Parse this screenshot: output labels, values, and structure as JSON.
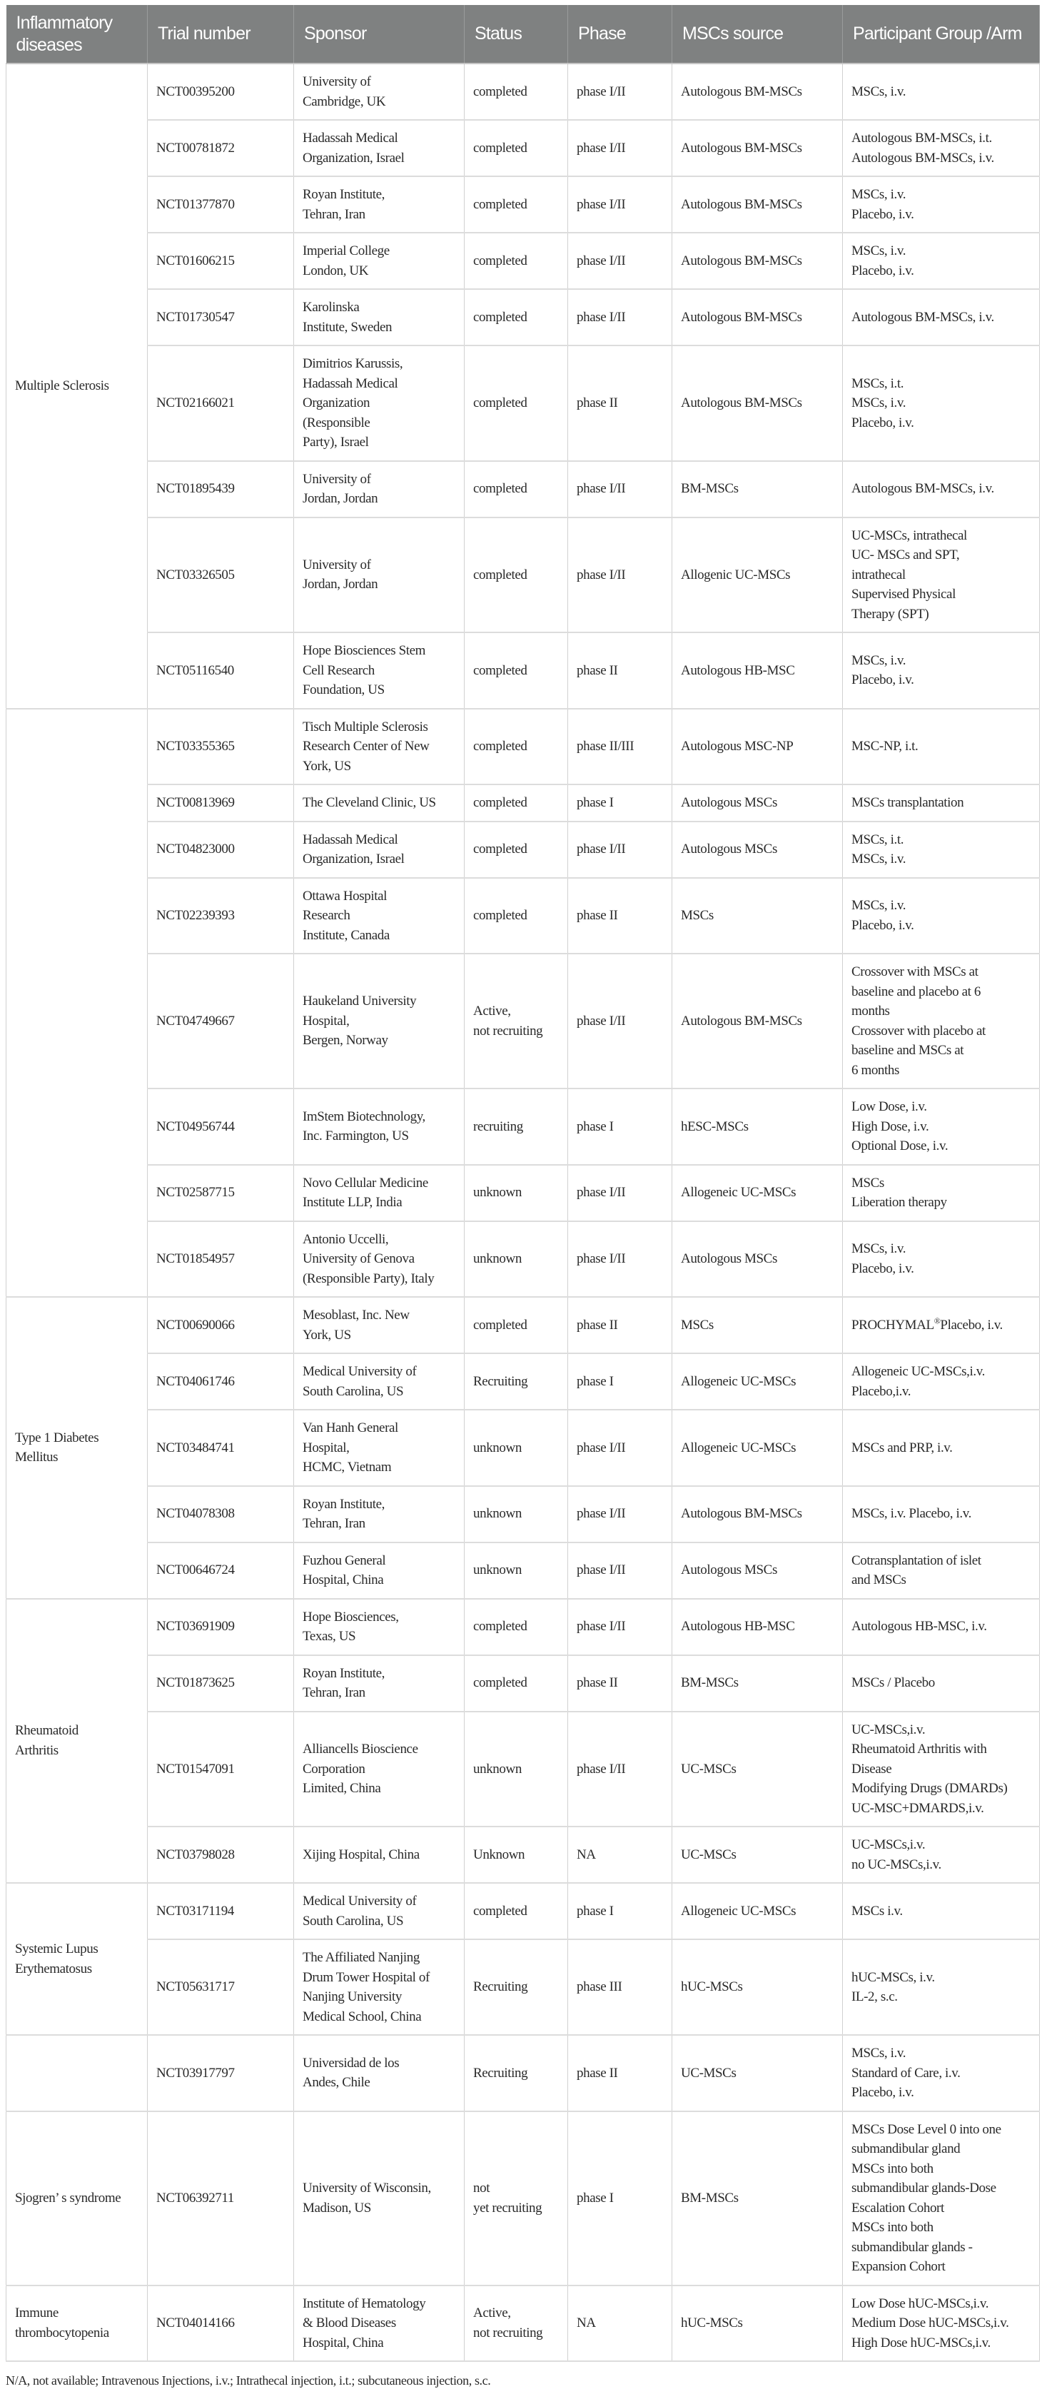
{
  "header": [
    "Inflammatory diseases",
    "Trial number",
    "Sponsor",
    "Status",
    "Phase",
    "MSCs source",
    "Participant Group /Arm"
  ],
  "groups": [
    {
      "disease": "Multiple Sclerosis",
      "rows": [
        {
          "trial": "NCT00395200",
          "sponsor": "University of\nCambridge, UK",
          "status": "completed",
          "phase": "phase I/II",
          "source": "Autologous BM-MSCs",
          "arm": "MSCs, i.v."
        },
        {
          "trial": "NCT00781872",
          "sponsor": "Hadassah Medical\nOrganization, Israel",
          "status": "completed",
          "phase": "phase I/II",
          "source": "Autologous BM-MSCs",
          "arm": "Autologous BM-MSCs, i.t.\nAutologous BM-MSCs, i.v."
        },
        {
          "trial": "NCT01377870",
          "sponsor": "Royan Institute,\nTehran, Iran",
          "status": "completed",
          "phase": "phase I/II",
          "source": "Autologous BM-MSCs",
          "arm": "MSCs, i.v.\nPlacebo, i.v."
        },
        {
          "trial": "NCT01606215",
          "sponsor": "Imperial College\nLondon, UK",
          "status": "completed",
          "phase": "phase I/II",
          "source": "Autologous BM-MSCs",
          "arm": "MSCs, i.v.\nPlacebo, i.v."
        },
        {
          "trial": "NCT01730547",
          "sponsor": "Karolinska\nInstitute, Sweden",
          "status": "completed",
          "phase": "phase I/II",
          "source": "Autologous BM-MSCs",
          "arm": "Autologous BM-MSCs, i.v."
        },
        {
          "trial": "NCT02166021",
          "sponsor": "Dimitrios Karussis,\nHadassah Medical\nOrganization\n(Responsible\nParty), Israel",
          "status": "completed",
          "phase": "phase II",
          "source": "Autologous BM-MSCs",
          "arm": "MSCs, i.t.\nMSCs, i.v.\nPlacebo, i.v."
        },
        {
          "trial": "NCT01895439",
          "sponsor": "University of\nJordan, Jordan",
          "status": "completed",
          "phase": "phase I/II",
          "source": "BM-MSCs",
          "arm": "Autologous BM-MSCs, i.v."
        },
        {
          "trial": "NCT03326505",
          "sponsor": "University of\nJordan, Jordan",
          "status": "completed",
          "phase": "phase I/II",
          "source": "Allogenic UC-MSCs",
          "arm": "UC-MSCs, intrathecal\nUC- MSCs and SPT,\nintrathecal\nSupervised Physical\nTherapy (SPT)"
        },
        {
          "trial": "NCT05116540",
          "sponsor": "Hope Biosciences Stem\nCell Research\nFoundation, US",
          "status": "completed",
          "phase": "phase II",
          "source": "Autologous HB-MSC",
          "arm": "MSCs, i.v.\nPlacebo, i.v."
        }
      ]
    },
    {
      "disease": "",
      "rows": [
        {
          "trial": "NCT03355365",
          "sponsor": "Tisch Multiple Sclerosis\nResearch Center of New\nYork, US",
          "status": "completed",
          "phase": "phase II/III",
          "source": "Autologous MSC-NP",
          "arm": "MSC-NP, i.t."
        },
        {
          "trial": "NCT00813969",
          "sponsor": "The Cleveland Clinic, US",
          "status": "completed",
          "phase": "phase I",
          "source": "Autologous MSCs",
          "arm": "MSCs transplantation"
        },
        {
          "trial": "NCT04823000",
          "sponsor": "Hadassah Medical\nOrganization, Israel",
          "status": "completed",
          "phase": "phase I/II",
          "source": "Autologous MSCs",
          "arm": "MSCs, i.t.\nMSCs, i.v."
        },
        {
          "trial": "NCT02239393",
          "sponsor": "Ottawa Hospital\nResearch\nInstitute, Canada",
          "status": "completed",
          "phase": "phase II",
          "source": "MSCs",
          "arm": "MSCs, i.v.\nPlacebo, i.v."
        },
        {
          "trial": "NCT04749667",
          "sponsor": "Haukeland University\nHospital,\nBergen, Norway",
          "status": "Active,\nnot recruiting",
          "phase": "phase I/II",
          "source": "Autologous BM-MSCs",
          "arm": "Crossover with MSCs at\nbaseline and placebo at 6\nmonths\nCrossover with placebo at\nbaseline and MSCs at\n6 months"
        },
        {
          "trial": "NCT04956744",
          "sponsor": "ImStem Biotechnology,\nInc. Farmington, US",
          "status": "recruiting",
          "phase": "phase I",
          "source": "hESC-MSCs",
          "arm": "Low Dose, i.v.\nHigh Dose, i.v.\nOptional Dose, i.v."
        },
        {
          "trial": "NCT02587715",
          "sponsor": "Novo Cellular Medicine\nInstitute LLP, India",
          "status": "unknown",
          "phase": "phase I/II",
          "source": "Allogeneic UC-MSCs",
          "arm": "MSCs\nLiberation therapy"
        },
        {
          "trial": "NCT01854957",
          "sponsor": "Antonio Uccelli,\nUniversity of Genova\n(Responsible Party), Italy",
          "status": "unknown",
          "phase": "phase I/II",
          "source": "Autologous MSCs",
          "arm": "MSCs, i.v.\nPlacebo, i.v."
        }
      ]
    },
    {
      "disease": "Type 1 Diabetes\nMellitus",
      "rows": [
        {
          "trial": "NCT00690066",
          "sponsor": "Mesoblast, Inc. New\nYork, US",
          "status": "completed",
          "phase": "phase II",
          "source": "MSCs",
          "arm": "PROCHYMAL®Placebo, i.v."
        },
        {
          "trial": "NCT04061746",
          "sponsor": "Medical University of\nSouth Carolina, US",
          "status": "Recruiting",
          "phase": "phase I",
          "source": "Allogeneic UC-MSCs",
          "arm": "Allogeneic UC-MSCs,i.v.\nPlacebo,i.v."
        },
        {
          "trial": "NCT03484741",
          "sponsor": "Van Hanh General\nHospital,\nHCMC, Vietnam",
          "status": "unknown",
          "phase": "phase I/II",
          "source": "Allogeneic UC-MSCs",
          "arm": "MSCs and PRP, i.v."
        },
        {
          "trial": "NCT04078308",
          "sponsor": "Royan Institute,\nTehran, Iran",
          "status": "unknown",
          "phase": "phase I/II",
          "source": "Autologous BM-MSCs",
          "arm": "MSCs, i.v. Placebo, i.v."
        },
        {
          "trial": "NCT00646724",
          "sponsor": "Fuzhou General\nHospital, China",
          "status": "unknown",
          "phase": "phase I/II",
          "source": "Autologous MSCs",
          "arm": "Cotransplantation of islet\nand MSCs"
        }
      ]
    },
    {
      "disease": "Rheumatoid\nArthritis",
      "rows": [
        {
          "trial": "NCT03691909",
          "sponsor": "Hope Biosciences,\nTexas, US",
          "status": "completed",
          "phase": "phase I/II",
          "source": "Autologous HB-MSC",
          "arm": "Autologous HB-MSC, i.v."
        },
        {
          "trial": "NCT01873625",
          "sponsor": "Royan Institute,\nTehran, Iran",
          "status": "completed",
          "phase": "phase II",
          "source": "BM-MSCs",
          "arm": "MSCs / Placebo"
        },
        {
          "trial": "NCT01547091",
          "sponsor": "Alliancells Bioscience\nCorporation\nLimited, China",
          "status": "unknown",
          "phase": "phase I/II",
          "source": "UC-MSCs",
          "arm": "UC-MSCs,i.v.\nRheumatoid Arthritis with\nDisease\nModifying Drugs (DMARDs)\nUC-MSC+DMARDS,i.v."
        },
        {
          "trial": "NCT03798028",
          "sponsor": "Xijing Hospital, China",
          "status": "Unknown",
          "phase": "NA",
          "source": "UC-MSCs",
          "arm": "UC-MSCs,i.v.\nno UC-MSCs,i.v."
        }
      ]
    },
    {
      "disease": "Systemic Lupus\nErythematosus",
      "rows": [
        {
          "trial": "NCT03171194",
          "sponsor": "Medical University of\nSouth Carolina, US",
          "status": "completed",
          "phase": "phase I",
          "source": "Allogeneic UC-MSCs",
          "arm": "MSCs i.v."
        },
        {
          "trial": "NCT05631717",
          "sponsor": "The Affiliated Nanjing\nDrum Tower Hospital of\nNanjing University\nMedical School, China",
          "status": "Recruiting",
          "phase": "phase III",
          "source": "hUC-MSCs",
          "arm": "hUC-MSCs, i.v.\nIL-2, s.c."
        }
      ]
    },
    {
      "disease": "",
      "rows": [
        {
          "trial": "NCT03917797",
          "sponsor": "Universidad de los\nAndes, Chile",
          "status": "Recruiting",
          "phase": "phase II",
          "source": "UC-MSCs",
          "arm": "MSCs, i.v.\nStandard of Care, i.v.\nPlacebo, i.v."
        }
      ]
    },
    {
      "disease": "Sjogren’ s syndrome",
      "rows": [
        {
          "trial": "NCT06392711",
          "sponsor": "University of Wisconsin,\nMadison, US",
          "status": "not\nyet recruiting",
          "phase": "phase I",
          "source": "BM-MSCs",
          "arm": "MSCs Dose Level 0 into one\nsubmandibular gland\nMSCs into both\nsubmandibular glands-Dose\nEscalation Cohort\nMSCs into both\nsubmandibular glands -\nExpansion Cohort"
        }
      ]
    },
    {
      "disease": "Immune\nthrombocytopenia",
      "rows": [
        {
          "trial": "NCT04014166",
          "sponsor": "Institute of Hematology\n& Blood Diseases\nHospital, China",
          "status": "Active,\nnot recruiting",
          "phase": "NA",
          "source": "hUC-MSCs",
          "arm": "Low Dose hUC-MSCs,i.v.\nMedium Dose hUC-MSCs,i.v.\nHigh Dose hUC-MSCs,i.v."
        }
      ]
    }
  ],
  "footnote": "N/A, not available; Intravenous Injections, i.v.; Intrathecal injection, i.t.; subcutaneous injection, s.c."
}
